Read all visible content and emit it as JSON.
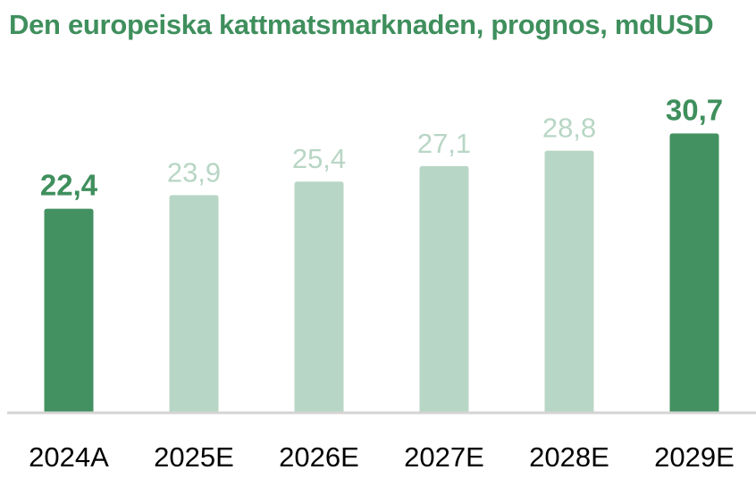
{
  "chart_data": {
    "type": "bar",
    "title": "Den europeiska kattmatsmarknaden, prognos, mdUSD",
    "xlabel": "",
    "ylabel": "",
    "ylim": [
      0,
      32
    ],
    "grid": false,
    "legend": "none",
    "categories": [
      "2024A",
      "2025E",
      "2026E",
      "2027E",
      "2028E",
      "2029E"
    ],
    "values": [
      22.4,
      23.9,
      25.4,
      27.1,
      28.8,
      30.7
    ],
    "value_labels": [
      "22,4",
      "23,9",
      "25,4",
      "27,1",
      "28,8",
      "30,7"
    ],
    "highlighted": [
      true,
      false,
      false,
      false,
      false,
      true
    ]
  },
  "colors": {
    "title": "#3f8f5d",
    "bar_highlight": "#439061",
    "bar_regular": "#b8d6c5",
    "label_highlight": "#3f8f5d",
    "label_regular": "#b8d6c5",
    "axis": "#d4d4d4",
    "category_text": "#000000"
  }
}
